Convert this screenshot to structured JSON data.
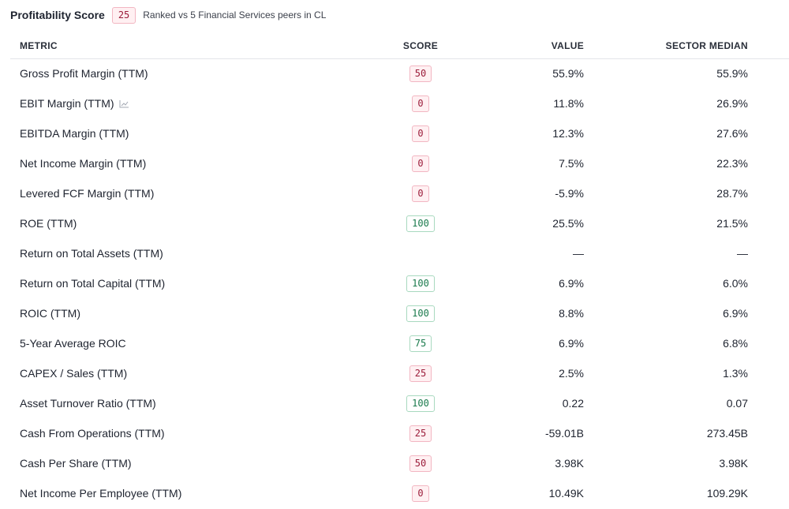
{
  "header": {
    "title": "Profitability Score",
    "score": "25",
    "subtitle": "Ranked vs 5 Financial Services peers in CL"
  },
  "columns": {
    "metric": "METRIC",
    "score": "SCORE",
    "value": "VALUE",
    "median": "SECTOR MEDIAN"
  },
  "colors": {
    "low_score_text": "#9b1c3a",
    "low_score_bg": "#fff0f2",
    "high_score_text": "#1a7a4c",
    "high_score_border": "#a8d9bf"
  },
  "rows": [
    {
      "metric": "Gross Profit Margin (TTM)",
      "score": "50",
      "tone": "low",
      "value": "55.9%",
      "median": "55.9%"
    },
    {
      "metric": "EBIT Margin (TTM)",
      "score": "0",
      "tone": "low",
      "value": "11.8%",
      "median": "26.9%",
      "icon": "line-chart-icon"
    },
    {
      "metric": "EBITDA Margin (TTM)",
      "score": "0",
      "tone": "low",
      "value": "12.3%",
      "median": "27.6%"
    },
    {
      "metric": "Net Income Margin (TTM)",
      "score": "0",
      "tone": "low",
      "value": "7.5%",
      "median": "22.3%"
    },
    {
      "metric": "Levered FCF Margin (TTM)",
      "score": "0",
      "tone": "low",
      "value": "-5.9%",
      "median": "28.7%"
    },
    {
      "metric": "ROE (TTM)",
      "score": "100",
      "tone": "high",
      "value": "25.5%",
      "median": "21.5%"
    },
    {
      "metric": "Return on Total Assets (TTM)",
      "score": "",
      "tone": "none",
      "value": "—",
      "median": "—"
    },
    {
      "metric": "Return on Total Capital (TTM)",
      "score": "100",
      "tone": "high",
      "value": "6.9%",
      "median": "6.0%"
    },
    {
      "metric": "ROIC (TTM)",
      "score": "100",
      "tone": "high",
      "value": "8.8%",
      "median": "6.9%"
    },
    {
      "metric": "5-Year Average ROIC",
      "score": "75",
      "tone": "high",
      "value": "6.9%",
      "median": "6.8%"
    },
    {
      "metric": "CAPEX / Sales (TTM)",
      "score": "25",
      "tone": "low",
      "value": "2.5%",
      "median": "1.3%"
    },
    {
      "metric": "Asset Turnover Ratio (TTM)",
      "score": "100",
      "tone": "high",
      "value": "0.22",
      "median": "0.07"
    },
    {
      "metric": "Cash From Operations (TTM)",
      "score": "25",
      "tone": "low",
      "value": "-59.01B",
      "median": "273.45B"
    },
    {
      "metric": "Cash Per Share (TTM)",
      "score": "50",
      "tone": "low",
      "value": "3.98K",
      "median": "3.98K"
    },
    {
      "metric": "Net Income Per Employee (TTM)",
      "score": "0",
      "tone": "low",
      "value": "10.49K",
      "median": "109.29K"
    }
  ]
}
